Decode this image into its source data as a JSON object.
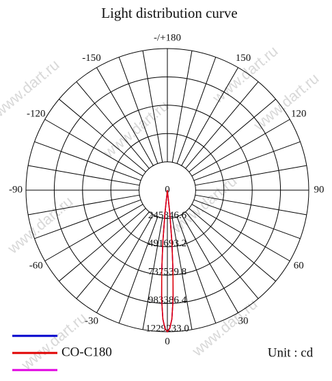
{
  "chart_data": {
    "type": "polar",
    "title": "Light distribution curve",
    "unit_label": "Unit : cd",
    "watermark": "www.dart.ru",
    "rlim": [
      0,
      1229233.0
    ],
    "rticks": [
      0,
      245846.6,
      491693.2,
      737539.8,
      983386.4,
      {
        "value": 1229233.0,
        "label": "1229233.0"
      }
    ],
    "thetaticks": [
      0,
      30,
      60,
      90,
      120,
      150,
      {
        "value": 180,
        "label": "-/+180"
      },
      -150,
      -120,
      -90,
      -60,
      -30
    ],
    "angular_grid_step": 10,
    "theta": [
      -8,
      -6,
      -5,
      -4,
      -3,
      -2,
      -1,
      0,
      1,
      2,
      3,
      4,
      5,
      6,
      8
    ],
    "series": [
      {
        "color": "#0000cc",
        "values": [
          0,
          200000,
          450000,
          700000,
          950000,
          1120000,
          1200000,
          1229233,
          1200000,
          1120000,
          950000,
          700000,
          450000,
          200000,
          0
        ]
      },
      {
        "name": "CO-C180",
        "color": "#e00000",
        "values": [
          0,
          200000,
          450000,
          700000,
          950000,
          1120000,
          1200000,
          1229233,
          1200000,
          1120000,
          950000,
          700000,
          450000,
          200000,
          0
        ]
      },
      {
        "color": "#e000e0",
        "values": [
          0,
          200000,
          450000,
          700000,
          950000,
          1120000,
          1200000,
          1229233,
          1200000,
          1120000,
          950000,
          700000,
          450000,
          200000,
          0
        ]
      }
    ]
  }
}
